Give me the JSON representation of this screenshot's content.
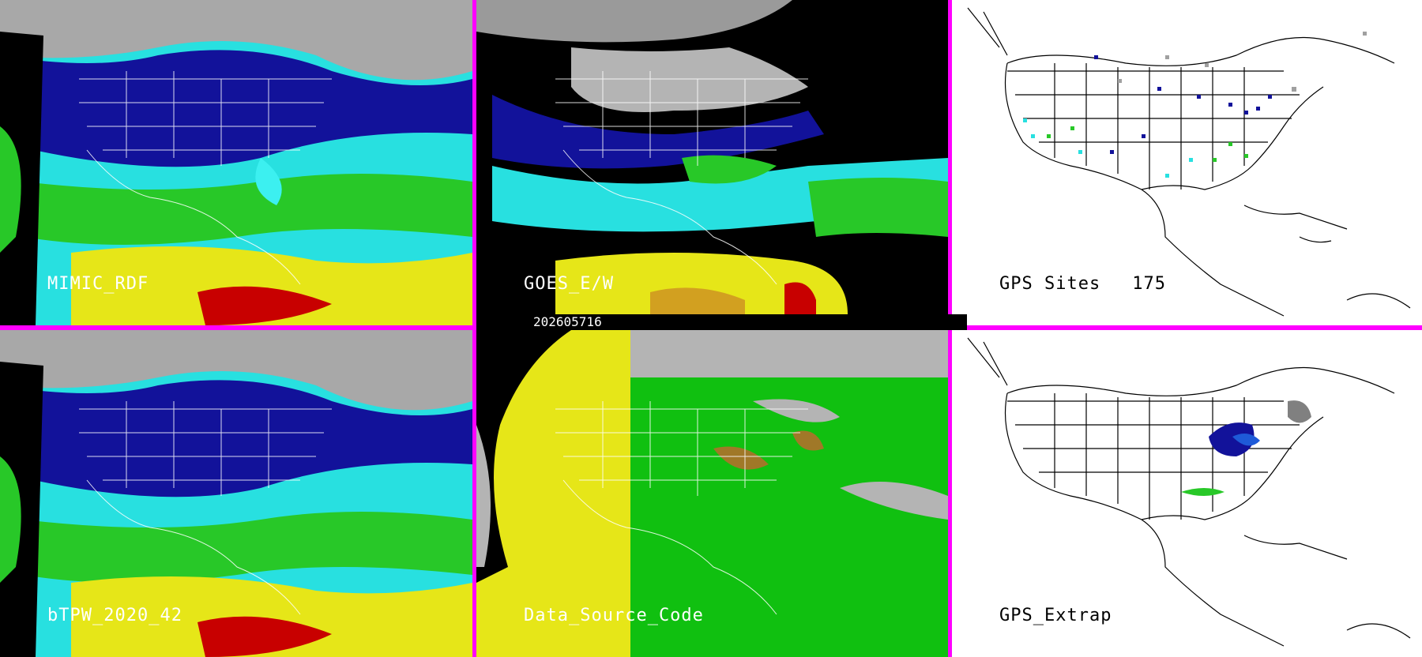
{
  "panels": {
    "mimic_rdf": {
      "label": "MIMIC_RDF"
    },
    "goes_ew": {
      "label": "GOES_E/W"
    },
    "gps_sites": {
      "label": "GPS Sites",
      "count": "175"
    },
    "btpw": {
      "label": "bTPW_2020_42"
    },
    "data_source": {
      "label": "Data_Source_Code"
    },
    "gps_extrap": {
      "label": "GPS_Extrap"
    }
  },
  "timestamp": "202605716",
  "colors": {
    "divider": "#ff00ff",
    "tpw_scale": [
      "#b0b0b0",
      "#10109a",
      "#1e5ad8",
      "#28e0e0",
      "#28c828",
      "#e6e618",
      "#d2a020",
      "#c80000"
    ],
    "data_source_yellow": "#e6e618",
    "data_source_green": "#10c010",
    "data_source_gray": "#b4b4b4"
  }
}
